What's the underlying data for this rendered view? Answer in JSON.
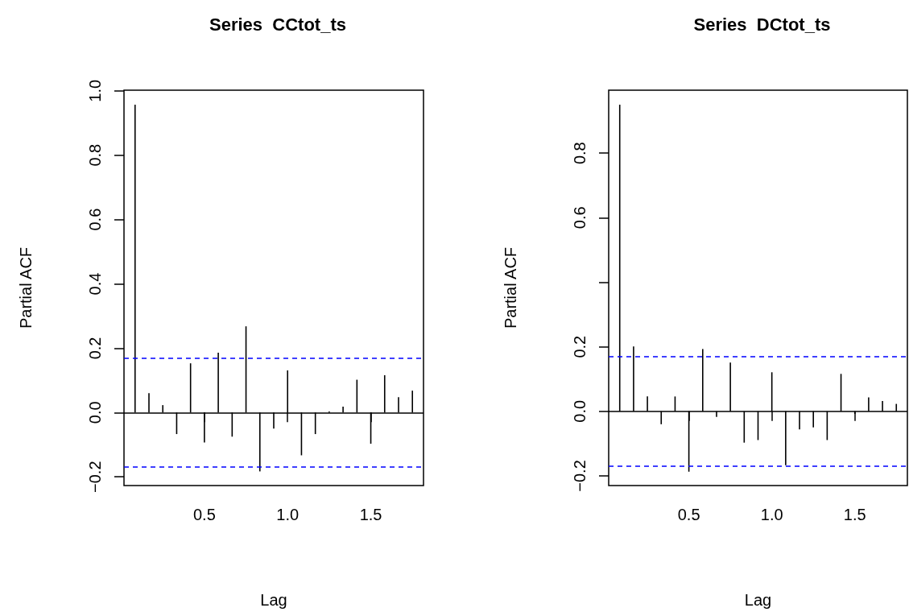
{
  "chart_data": [
    {
      "type": "bar",
      "title": "Series  CCtot_ts",
      "xlabel": "Lag",
      "ylabel": "Partial ACF",
      "x": [
        0.0833,
        0.1667,
        0.25,
        0.3333,
        0.4167,
        0.5,
        0.5833,
        0.6667,
        0.75,
        0.8333,
        0.9167,
        1.0,
        1.0833,
        1.1667,
        1.25,
        1.3333,
        1.4167,
        1.5,
        1.5833,
        1.6667,
        1.75
      ],
      "values": [
        0.957,
        0.06,
        0.023,
        -0.067,
        0.153,
        -0.093,
        0.186,
        -0.075,
        0.268,
        -0.183,
        -0.05,
        0.131,
        -0.133,
        -0.067,
        0.003,
        0.018,
        0.102,
        -0.097,
        0.116,
        0.048,
        0.068
      ],
      "color": "#000000",
      "xlim": [
        0.0167,
        1.8167
      ],
      "xticks": [
        {
          "value": 0.5,
          "label": "0.5"
        },
        {
          "value": 1.0,
          "label": "1.0"
        },
        {
          "value": 1.5,
          "label": "1.5"
        }
      ],
      "ylim": [
        -0.227,
        1.002
      ],
      "yticks": [
        {
          "value": -0.2,
          "label": "−0.2"
        },
        {
          "value": 0,
          "label": "0.0"
        },
        {
          "value": 0.2,
          "label": "0.2"
        },
        {
          "value": 0.4,
          "label": "0.4"
        },
        {
          "value": 0.6,
          "label": "0.6"
        },
        {
          "value": 0.8,
          "label": "0.8"
        },
        {
          "value": 1.0,
          "label": "1.0"
        }
      ],
      "ref_lines": [
        {
          "axis": "y",
          "value": 0,
          "color": "#000000",
          "line_style": "solid"
        },
        {
          "axis": "y",
          "value": 0.172,
          "color": "#0000ff",
          "line_style": "dashed"
        },
        {
          "axis": "y",
          "value": -0.172,
          "color": "#0000ff",
          "line_style": "dashed"
        }
      ]
    },
    {
      "type": "bar",
      "title": "Series  DCtot_ts",
      "xlabel": "Lag",
      "ylabel": "Partial ACF",
      "x": [
        0.0833,
        0.1667,
        0.25,
        0.3333,
        0.4167,
        0.5,
        0.5833,
        0.6667,
        0.75,
        0.8333,
        0.9167,
        1.0,
        1.0833,
        1.1667,
        1.25,
        1.3333,
        1.4167,
        1.5,
        1.5833,
        1.6667,
        1.75
      ],
      "values": [
        0.95,
        0.201,
        0.046,
        -0.04,
        0.046,
        -0.187,
        0.193,
        -0.017,
        0.151,
        -0.097,
        -0.089,
        0.121,
        -0.167,
        -0.056,
        -0.05,
        -0.089,
        0.116,
        -0.008,
        0.043,
        0.032,
        0.023
      ],
      "color": "#000000",
      "xlim": [
        0.0167,
        1.8167
      ],
      "xticks": [
        {
          "value": 0.5,
          "label": "0.5"
        },
        {
          "value": 1.0,
          "label": "1.0"
        },
        {
          "value": 1.5,
          "label": "1.5"
        }
      ],
      "ylim": [
        -0.23,
        0.995
      ],
      "yticks": [
        {
          "value": -0.2,
          "label": "−0.2"
        },
        {
          "value": 0,
          "label": "0.0"
        },
        {
          "value": 0.2,
          "label": "0.2"
        },
        {
          "value": 0.4,
          "label": null
        },
        {
          "value": 0.6,
          "label": "0.6"
        },
        {
          "value": 0.8,
          "label": "0.8"
        }
      ],
      "ref_lines": [
        {
          "axis": "y",
          "value": 0,
          "color": "#000000",
          "line_style": "solid"
        },
        {
          "axis": "y",
          "value": 0.172,
          "color": "#0000ff",
          "line_style": "dashed"
        },
        {
          "axis": "y",
          "value": -0.172,
          "color": "#0000ff",
          "line_style": "dashed"
        }
      ]
    }
  ]
}
